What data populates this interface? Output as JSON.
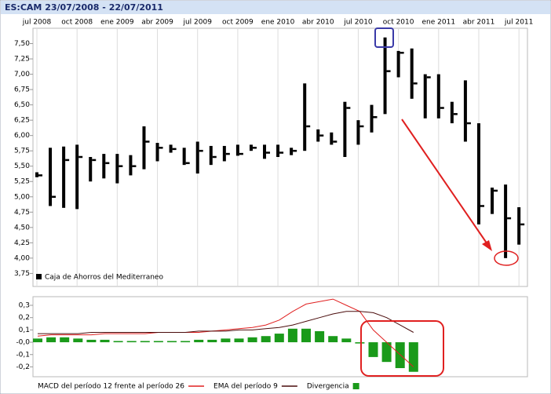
{
  "title": "ES:CAM 23/07/2008 - 22/07/2011",
  "chart_data": [
    {
      "type": "ohlc",
      "categories": [
        "jul 2008",
        null,
        null,
        "oct 2008",
        null,
        null,
        "ene 2009",
        null,
        null,
        "abr 2009",
        null,
        null,
        "jul 2009",
        null,
        null,
        "oct 2009",
        null,
        null,
        "ene 2010",
        null,
        null,
        "abr 2010",
        null,
        null,
        "jul 2010",
        null,
        null,
        "oct 2010",
        null,
        null,
        "ene 2011",
        null,
        null,
        "abr 2011",
        null,
        null,
        "jul 2011"
      ],
      "series": [
        {
          "name": "Caja de Ahorros del Mediterraneo",
          "color": "#000000",
          "high": [
            5.4,
            5.8,
            5.82,
            5.85,
            5.65,
            5.7,
            5.7,
            5.68,
            6.15,
            5.88,
            5.85,
            5.8,
            5.9,
            5.83,
            5.83,
            5.85,
            5.85,
            5.85,
            5.85,
            5.8,
            6.85,
            6.1,
            6.05,
            6.55,
            6.25,
            6.5,
            7.6,
            7.38,
            7.42,
            7.0,
            7.0,
            6.55,
            6.9,
            6.2,
            5.15,
            5.2,
            4.83
          ],
          "low": [
            5.32,
            4.85,
            4.82,
            4.8,
            5.25,
            5.3,
            5.22,
            5.35,
            5.45,
            5.58,
            5.72,
            5.52,
            5.38,
            5.52,
            5.58,
            5.67,
            5.75,
            5.62,
            5.65,
            5.68,
            5.75,
            5.9,
            5.85,
            5.65,
            5.85,
            6.05,
            6.35,
            6.95,
            6.6,
            6.28,
            6.28,
            6.2,
            5.9,
            4.55,
            4.72,
            4.0,
            4.22
          ],
          "close": [
            5.35,
            5.0,
            5.6,
            5.65,
            5.6,
            5.55,
            5.5,
            5.5,
            5.9,
            5.8,
            5.78,
            5.55,
            5.75,
            5.65,
            5.7,
            5.7,
            5.8,
            5.72,
            5.72,
            5.75,
            6.15,
            6.0,
            5.9,
            6.45,
            6.15,
            6.3,
            7.05,
            7.35,
            6.85,
            6.95,
            6.45,
            6.35,
            6.2,
            4.85,
            5.1,
            4.65,
            4.55
          ]
        }
      ],
      "ylim": [
        3.55,
        7.75
      ],
      "yticks": [
        {
          "value": 3.75,
          "label": "3,75"
        },
        {
          "value": 4.0,
          "label": "4,00"
        },
        {
          "value": 4.25,
          "label": "4,25"
        },
        {
          "value": 4.5,
          "label": "4,50"
        },
        {
          "value": 4.75,
          "label": "4,75"
        },
        {
          "value": 5.0,
          "label": "5,00"
        },
        {
          "value": 5.25,
          "label": "5,25"
        },
        {
          "value": 5.5,
          "label": "5,50"
        },
        {
          "value": 5.75,
          "label": "5,75"
        },
        {
          "value": 6.0,
          "label": "6,00"
        },
        {
          "value": 6.25,
          "label": "6,25"
        },
        {
          "value": 6.5,
          "label": "6,50"
        },
        {
          "value": 6.75,
          "label": "6,75"
        },
        {
          "value": 7.0,
          "label": "7,00"
        },
        {
          "value": 7.25,
          "label": "7,25"
        },
        {
          "value": 7.5,
          "label": "7,50"
        }
      ],
      "grid": true
    },
    {
      "type": "macd",
      "categories": [
        null,
        null,
        null,
        null,
        null,
        null,
        null,
        null,
        null,
        null,
        null,
        null,
        null,
        null,
        null,
        null,
        null,
        null,
        null,
        null,
        null,
        null,
        null,
        null,
        null,
        null,
        null,
        null,
        null
      ],
      "series": [
        {
          "name": "MACD del período 12 frente al período 26",
          "color": "#e02020",
          "kind": "line",
          "values": [
            0.05,
            0.06,
            0.06,
            0.06,
            0.06,
            0.07,
            0.07,
            0.07,
            0.07,
            0.08,
            0.08,
            0.08,
            0.08,
            0.09,
            0.1,
            0.11,
            0.12,
            0.14,
            0.18,
            0.25,
            0.31,
            0.33,
            0.35,
            0.3,
            0.25,
            0.1,
            0.0,
            -0.1,
            -0.2
          ]
        },
        {
          "name": "EMA del período 9",
          "color": "#4a0c0c",
          "kind": "line",
          "values": [
            0.07,
            0.07,
            0.07,
            0.07,
            0.08,
            0.08,
            0.08,
            0.08,
            0.08,
            0.08,
            0.08,
            0.08,
            0.09,
            0.09,
            0.09,
            0.1,
            0.1,
            0.11,
            0.12,
            0.14,
            0.17,
            0.2,
            0.23,
            0.25,
            0.25,
            0.24,
            0.2,
            0.14,
            0.08
          ]
        },
        {
          "name": "Divergencia",
          "color": "#1a9a1a",
          "kind": "bar",
          "values": [
            0.03,
            0.04,
            0.04,
            0.03,
            0.02,
            0.02,
            0.01,
            0.01,
            0.01,
            0.01,
            0.01,
            0.01,
            0.02,
            0.02,
            0.03,
            0.03,
            0.04,
            0.05,
            0.07,
            0.11,
            0.11,
            0.09,
            0.05,
            0.03,
            -0.01,
            -0.12,
            -0.16,
            -0.21,
            -0.24
          ]
        }
      ],
      "ylim": [
        -0.28,
        0.37
      ],
      "yticks": [
        {
          "value": 0.3,
          "label": "0,3"
        },
        {
          "value": 0.2,
          "label": "0,2"
        },
        {
          "value": 0.1,
          "label": "0,1"
        },
        {
          "value": 0,
          "label": "-0,0"
        },
        {
          "value": -0.1,
          "label": "-0,1"
        },
        {
          "value": -0.2,
          "label": "-0,2"
        }
      ]
    }
  ]
}
